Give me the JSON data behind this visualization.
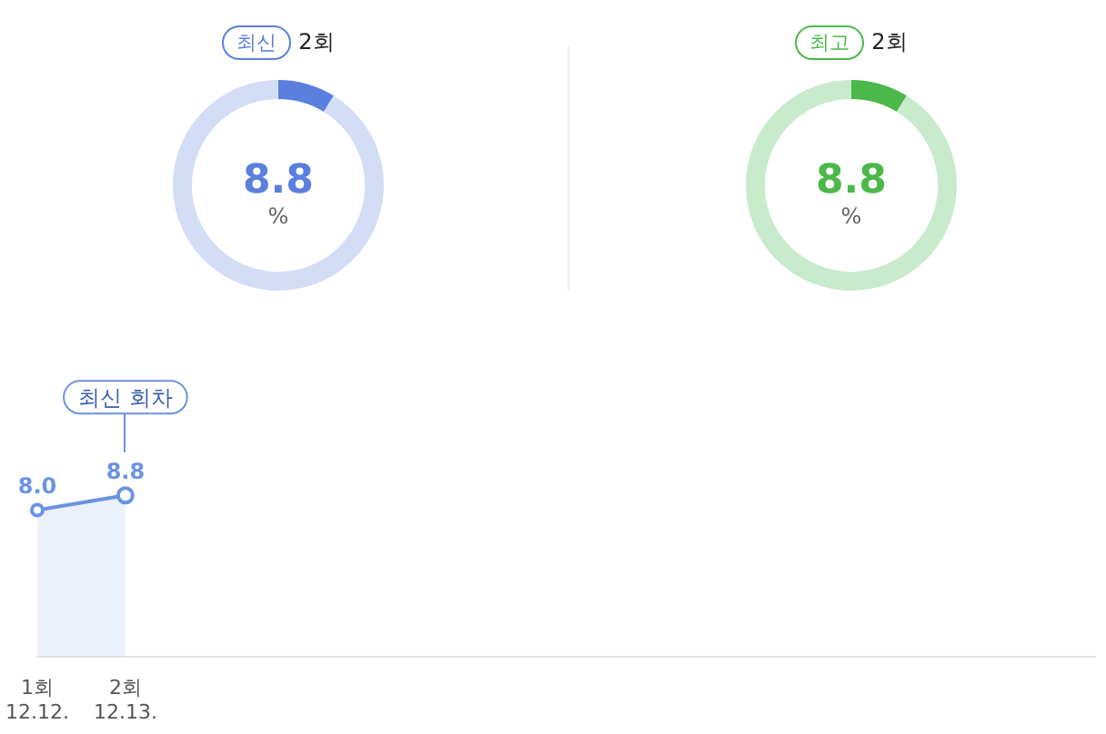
{
  "chart_data": [
    {
      "type": "donut",
      "title": "최신",
      "subtitle": "2회",
      "categories": [
        null,
        null
      ],
      "values": [
        8.8,
        91.2
      ],
      "colors": [
        "#5b7fde",
        "#d3ddf6"
      ],
      "value_labels": [
        "8.8",
        null
      ],
      "annotations": [
        "%"
      ]
    },
    {
      "type": "donut",
      "title": "최고",
      "subtitle": "2회",
      "categories": [
        null,
        null
      ],
      "values": [
        8.8,
        91.2
      ],
      "colors": [
        "#4cb84a",
        "#c8ebcc"
      ],
      "value_labels": [
        "8.8",
        null
      ],
      "annotations": [
        "%"
      ]
    },
    {
      "type": "area",
      "categories": [
        "1회\n12.12.",
        "2회\n12.13.",
        null,
        null,
        null,
        null,
        null,
        null,
        null,
        null,
        null,
        null,
        null
      ],
      "series": [
        {
          "color": "#6a93e0",
          "values": [
            8.0,
            8.8,
            null,
            null,
            null,
            null,
            null,
            null,
            null,
            null,
            null,
            null,
            null
          ],
          "value_labels": [
            "8.0",
            "8.8",
            null,
            null,
            null,
            null,
            null,
            null,
            null,
            null,
            null,
            null,
            null
          ]
        }
      ],
      "tick_labels": "x",
      "marker": "circle",
      "annotations": [
        "최신 회차"
      ]
    }
  ]
}
